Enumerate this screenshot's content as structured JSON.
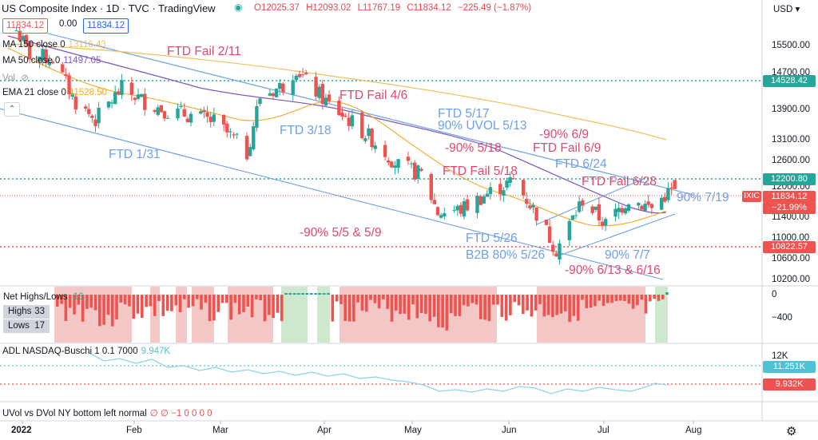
{
  "header": {
    "symbol": "US Composite Index · 1D · TVC · TradingView",
    "open": "O12025.37",
    "high": "H12093.02",
    "low": "L11767.19",
    "close": "C11834.12",
    "change": "−225.49 (−1.87%)",
    "sell_price": "11834.12",
    "spread": "0.00",
    "buy_price": "11834.12",
    "currency": "USD"
  },
  "indicators": {
    "ma150": {
      "label": "MA 150 close 0",
      "value": "13116.43"
    },
    "ma50": {
      "label": "MA 50 close 0",
      "value": "11497.05"
    },
    "vol": {
      "label": "Vol"
    },
    "ema21": {
      "label": "EMA 21 close 0",
      "value": "11528.50"
    }
  },
  "annotations": {
    "a1": "FTD Fail 2/11",
    "a2": "FTD Fail 4/6",
    "a3": "FTD 5/17",
    "a4": "90% UVOL 5/13",
    "a5": "-90% 6/9",
    "a6": "FTD 3/18",
    "a7": "-90% 5/18",
    "a8": "FTD Fail 6/9",
    "a9": "FTD 1/31",
    "a10": "FTD 6/24",
    "a11": "FTD Fail 5/18",
    "a12": "FTD Fail 6/28",
    "a13": "90% 7/19",
    "a14": "-90% 5/5 & 5/9",
    "a15": "FTD 5/26",
    "a16": "B2B 80% 5/26",
    "a17": "90% 7/7",
    "a18": "-90% 6/13 & 6/16"
  },
  "price_axis": [
    "15500.00",
    "14700.00",
    "13900.00",
    "13100.00",
    "12600.00",
    "12000.00",
    "11400.00",
    "11000.00",
    "10600.00",
    "10200.00"
  ],
  "price_tags": {
    "t1": "14528.42",
    "t2": "12200.80",
    "t3": "IXIC",
    "t4": "11834.12",
    "t5": "−21.99%",
    "t6": "10822.57"
  },
  "net_highs_lows": {
    "label": "Net Highs/Lows",
    "value": "16",
    "highs_label": "Highs",
    "highs_value": "33",
    "lows_label": "Lows",
    "lows_value": "17",
    "axis": [
      "0",
      "−400"
    ]
  },
  "adl": {
    "label": "ADL NASDAQ-Buschi 1 0.1 7000",
    "value": "9.947K",
    "axis": [
      "12K"
    ],
    "tag1": "11.251K",
    "tag2": "9.932K"
  },
  "uvol": {
    "label": "UVol vs DVol NY bottom left normal",
    "values": "∅ ∅ −1 0 0 0 0"
  },
  "time_axis": [
    "2022",
    "Feb",
    "Mar",
    "Apr",
    "May",
    "Jun",
    "Jul",
    "Aug"
  ],
  "colors": {
    "up": "#26a69a",
    "down": "#ef5350",
    "ma150": "#f2bf5e",
    "ma50": "#7e57c2",
    "ema21": "#f5a623",
    "channel": "#6d9fe6"
  },
  "chart_data": {
    "type": "line",
    "title": "US Composite Index · 1D · TVC · TradingView",
    "x_range": [
      "2021-12-29",
      "2022-08-02"
    ],
    "ylim": [
      10000,
      15950
    ],
    "y_scale": "log",
    "legend": "top-left",
    "grid": false,
    "series": [
      {
        "name": "US Composite Index (close)",
        "dates": [
          "2022-01-03",
          "2022-01-07",
          "2022-01-14",
          "2022-01-21",
          "2022-01-27",
          "2022-02-04",
          "2022-02-11",
          "2022-02-18",
          "2022-02-24",
          "2022-03-04",
          "2022-03-11",
          "2022-03-14",
          "2022-03-18",
          "2022-03-25",
          "2022-03-29",
          "2022-04-01",
          "2022-04-08",
          "2022-04-14",
          "2022-04-22",
          "2022-04-29",
          "2022-05-06",
          "2022-05-11",
          "2022-05-18",
          "2022-05-26",
          "2022-06-03",
          "2022-06-10",
          "2022-06-16",
          "2022-06-24",
          "2022-07-01",
          "2022-07-08",
          "2022-07-15",
          "2022-07-19",
          "2022-07-22"
        ],
        "values": [
          15600,
          14950,
          14850,
          13760,
          13350,
          14100,
          13780,
          13550,
          13470,
          13310,
          12840,
          12590,
          13900,
          14170,
          14620,
          14260,
          13710,
          13350,
          12840,
          12330,
          12140,
          11360,
          11420,
          11740,
          12010,
          11340,
          10650,
          11610,
          11130,
          11640,
          11450,
          11710,
          11834
        ]
      },
      {
        "name": "MA 150 close 0",
        "dates": [
          "2022-01-03",
          "2022-03-01",
          "2022-04-01",
          "2022-05-01",
          "2022-06-01",
          "2022-07-01",
          "2022-07-22"
        ],
        "values": [
          14950,
          14750,
          14650,
          14450,
          14000,
          13500,
          13116
        ]
      },
      {
        "name": "MA 50 close 0",
        "dates": [
          "2022-01-03",
          "2022-02-01",
          "2022-03-01",
          "2022-04-01",
          "2022-05-01",
          "2022-06-01",
          "2022-07-01",
          "2022-07-22"
        ],
        "values": [
          15450,
          15050,
          14150,
          13800,
          13500,
          12600,
          11650,
          11497
        ]
      },
      {
        "name": "EMA 21 close 0",
        "dates": [
          "2022-01-03",
          "2022-02-01",
          "2022-03-01",
          "2022-04-01",
          "2022-05-01",
          "2022-06-01",
          "2022-07-01",
          "2022-07-22"
        ],
        "values": [
          15300,
          14300,
          13800,
          14050,
          13000,
          12000,
          11450,
          11528
        ]
      }
    ]
  }
}
